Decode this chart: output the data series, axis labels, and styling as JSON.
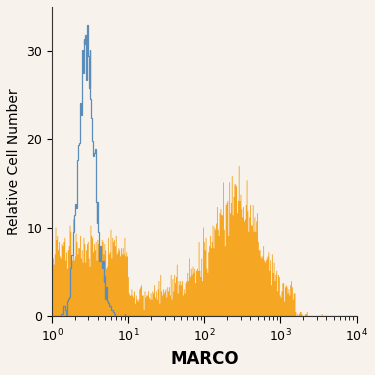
{
  "title": "",
  "xlabel": "MARCO",
  "ylabel": "Relative Cell Number",
  "xlim": [
    1,
    10000
  ],
  "ylim": [
    0,
    35
  ],
  "yticks": [
    0,
    10,
    20,
    30
  ],
  "background_color": "#f7f2ec",
  "blue_color": "#5b8db8",
  "orange_color": "#f5a623",
  "xlabel_fontsize": 12,
  "ylabel_fontsize": 10,
  "tick_fontsize": 9,
  "blue_seed": 10,
  "orange_seed": 7
}
